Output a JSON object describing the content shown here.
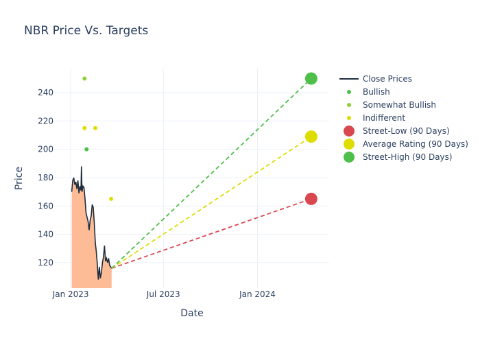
{
  "chart_data": {
    "type": "line",
    "title": "NBR Price Vs. Targets",
    "xlabel": "Date",
    "ylabel": "Price",
    "x_ticks": [
      "Jan 2023",
      "Jul 2023",
      "Jan 2024"
    ],
    "y_ticks": [
      120,
      140,
      160,
      180,
      200,
      220,
      240
    ],
    "xlim": [
      "2022-12-01",
      "2024-05-20"
    ],
    "ylim": [
      102,
      257
    ],
    "grid": true,
    "legend_position": "right",
    "close_prices": {
      "name": "Close Prices",
      "color": "#1f2d3d",
      "fill_color": "#fdbb96",
      "points": [
        [
          "2023-01-03",
          170
        ],
        [
          "2023-01-05",
          178
        ],
        [
          "2023-01-07",
          180
        ],
        [
          "2023-01-09",
          175
        ],
        [
          "2023-01-11",
          177
        ],
        [
          "2023-01-13",
          172
        ],
        [
          "2023-01-15",
          178
        ],
        [
          "2023-01-17",
          169
        ],
        [
          "2023-01-19",
          174
        ],
        [
          "2023-01-21",
          171
        ],
        [
          "2023-01-22",
          188
        ],
        [
          "2023-01-23",
          170
        ],
        [
          "2023-01-25",
          174
        ],
        [
          "2023-01-27",
          173
        ],
        [
          "2023-01-29",
          165
        ],
        [
          "2023-01-31",
          155
        ],
        [
          "2023-02-02",
          152
        ],
        [
          "2023-02-04",
          149
        ],
        [
          "2023-02-06",
          143
        ],
        [
          "2023-02-08",
          150
        ],
        [
          "2023-02-10",
          153
        ],
        [
          "2023-02-12",
          161
        ],
        [
          "2023-02-14",
          159
        ],
        [
          "2023-02-16",
          148
        ],
        [
          "2023-02-18",
          134
        ],
        [
          "2023-02-20",
          128
        ],
        [
          "2023-02-22",
          119
        ],
        [
          "2023-02-24",
          108
        ],
        [
          "2023-02-26",
          117
        ],
        [
          "2023-02-28",
          109
        ],
        [
          "2023-03-02",
          113
        ],
        [
          "2023-03-04",
          120
        ],
        [
          "2023-03-06",
          124
        ],
        [
          "2023-03-08",
          132
        ],
        [
          "2023-03-10",
          121
        ],
        [
          "2023-03-12",
          123
        ],
        [
          "2023-03-14",
          120
        ],
        [
          "2023-03-16",
          123
        ],
        [
          "2023-03-18",
          118
        ],
        [
          "2023-03-20",
          117
        ],
        [
          "2023-03-22",
          116
        ]
      ]
    },
    "ratings": [
      {
        "name": "Bullish",
        "color": "#4ebf48",
        "points": [
          [
            "2023-02-01",
            200
          ]
        ]
      },
      {
        "name": "Somewhat Bullish",
        "color": "#8fd13a",
        "points": [
          [
            "2023-01-28",
            250
          ]
        ]
      },
      {
        "name": "Indifferent",
        "color": "#dddd00",
        "points": [
          [
            "2023-01-28",
            215
          ],
          [
            "2023-02-18",
            215
          ],
          [
            "2023-03-21",
            165
          ]
        ]
      }
    ],
    "targets": [
      {
        "name": "Street-Low (90 Days)",
        "color": "#d9474f",
        "value": 165,
        "from": [
          "2023-03-22",
          116
        ],
        "to": "2024-04-15"
      },
      {
        "name": "Average Rating (90 Days)",
        "color": "#dddd00",
        "value": 209,
        "from": [
          "2023-03-22",
          116
        ],
        "to": "2024-04-15"
      },
      {
        "name": "Street-High (90 Days)",
        "color": "#4ebf48",
        "value": 250,
        "from": [
          "2023-03-22",
          116
        ],
        "to": "2024-04-15"
      }
    ]
  }
}
